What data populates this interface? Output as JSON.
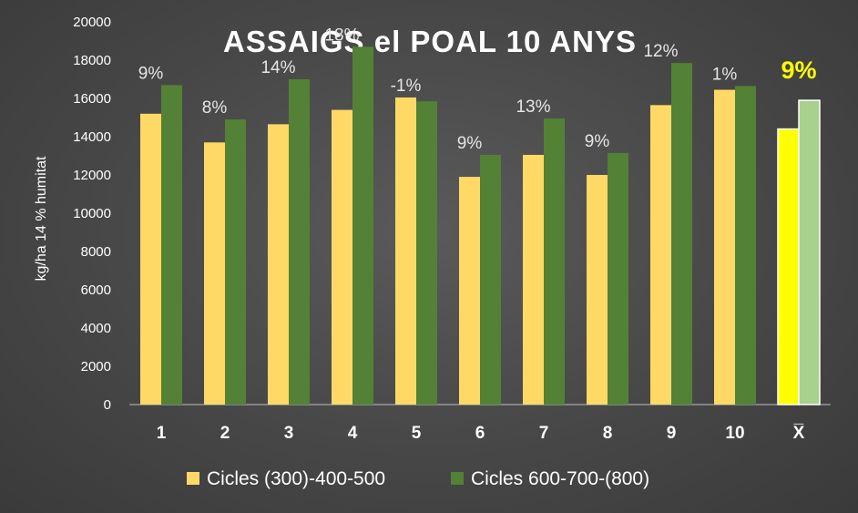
{
  "chart_data": {
    "type": "bar",
    "title": "ASSAIGS el POAL 10 ANYS",
    "ylabel": "kg/ha 14 % humitat",
    "xlabel": "",
    "ylim": [
      0,
      20000
    ],
    "yticks": [
      0,
      2000,
      4000,
      6000,
      8000,
      10000,
      12000,
      14000,
      16000,
      18000,
      20000
    ],
    "categories": [
      "1",
      "2",
      "3",
      "4",
      "5",
      "6",
      "7",
      "8",
      "9",
      "10",
      "X̅"
    ],
    "series": [
      {
        "name": "Cicles (300)-400-500",
        "color": "#ffd966",
        "values": [
          15200,
          13700,
          14650,
          15400,
          16050,
          11900,
          13050,
          12000,
          15650,
          16450,
          14400
        ],
        "highlight_last_color": "#ffff00"
      },
      {
        "name": "Cicles 600-700-(800)",
        "color": "#538135",
        "values": [
          16700,
          14900,
          17000,
          18700,
          15850,
          13050,
          14950,
          13150,
          17850,
          16650,
          15900
        ],
        "highlight_last_color": "#a9d18e"
      }
    ],
    "annotations": [
      "9%",
      "8%",
      "14%",
      "18%",
      "-1%",
      "9%",
      "13%",
      "9%",
      "12%",
      "1%",
      "9%"
    ],
    "grid": false,
    "legend_position": "bottom"
  }
}
